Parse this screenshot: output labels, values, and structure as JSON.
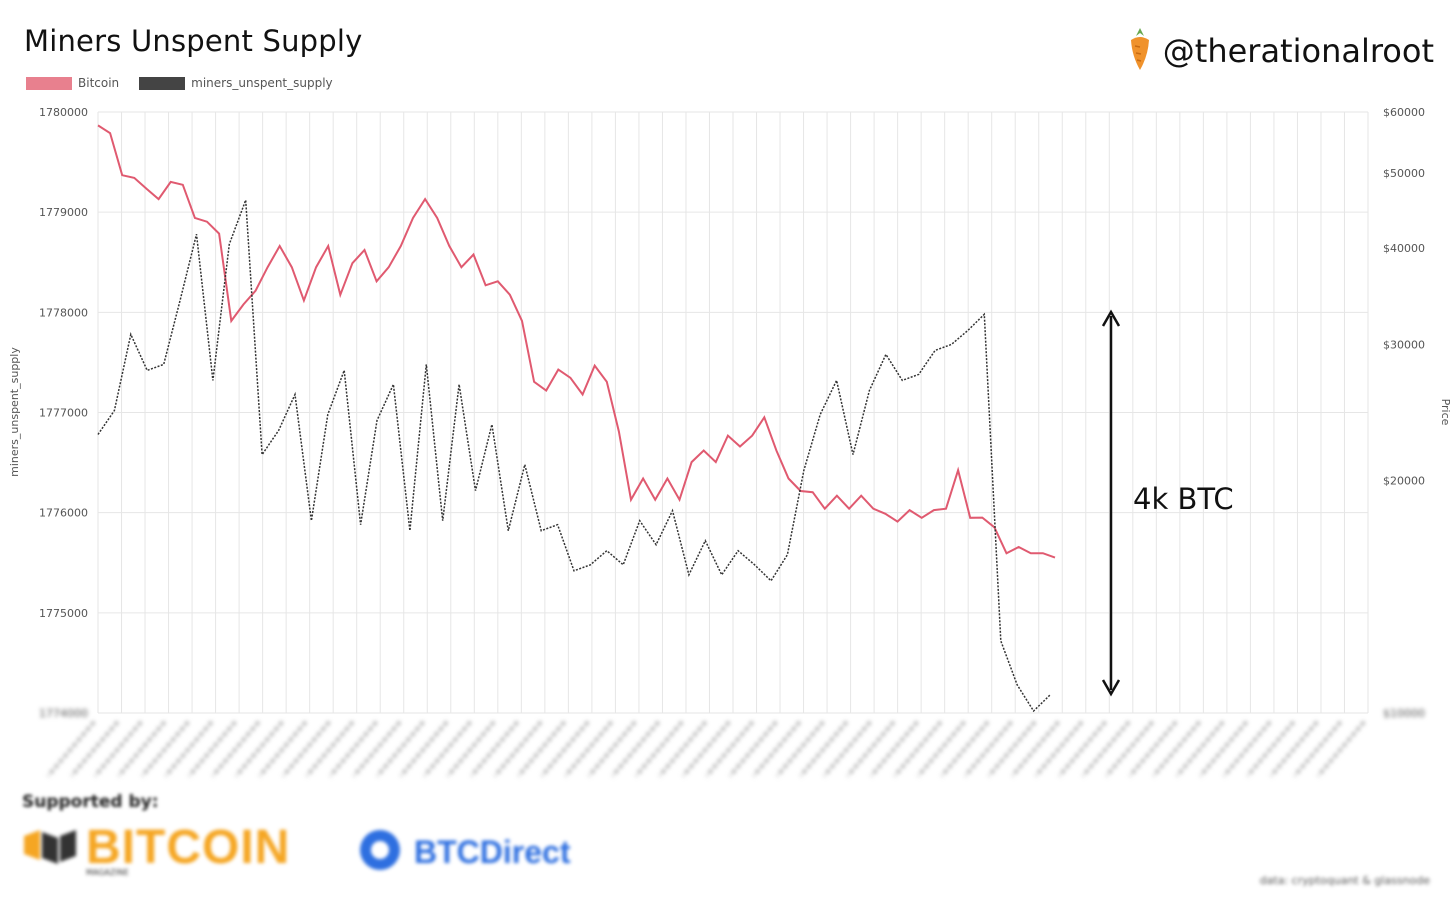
{
  "title": "Miners Unspent Supply",
  "handle": "@therationalroot",
  "legend": [
    {
      "label": "Bitcoin",
      "color": "#e8808e"
    },
    {
      "label": "miners_unspent_supply",
      "color": "#444444"
    }
  ],
  "annotation": "4k BTC",
  "supported_by": "Supported by:",
  "sponsors": [
    "BITCOIN",
    "BTCDirect"
  ],
  "sponsor_sub": "MAGAZINE",
  "source_note": "data: cryptoquant & glassnode",
  "chart_data": {
    "type": "line",
    "y_left": {
      "label": "miners_unspent_supply",
      "ticks": [
        "1780000",
        "1779000",
        "1778000",
        "1777000",
        "1776000",
        "1775000",
        "1774000"
      ],
      "range": [
        1774000,
        1780000
      ]
    },
    "y_right": {
      "label": "Price",
      "scale": "log",
      "ticks": [
        "$60000",
        "$50000",
        "$40000",
        "$30000",
        "$20000",
        "$10000"
      ],
      "range": [
        10000,
        60000
      ]
    },
    "grid": true,
    "series": [
      {
        "name": "Bitcoin",
        "axis": "right",
        "color": "#e05a70",
        "values": [
          58000,
          56000,
          50000,
          49000,
          48000,
          46000,
          49000,
          48000,
          44000,
          43000,
          42000,
          32000,
          34000,
          35000,
          38000,
          40000,
          38000,
          34000,
          38000,
          40000,
          35000,
          38000,
          40000,
          36000,
          38000,
          40000,
          44000,
          46000,
          44000,
          40000,
          38000,
          39000,
          36000,
          36000,
          35000,
          32000,
          27000,
          26000,
          28000,
          27000,
          26000,
          28000,
          27000,
          23000,
          19000,
          20000,
          19000,
          20000,
          19000,
          21000,
          22000,
          21000,
          23000,
          22000,
          23000,
          24000,
          22000,
          20000,
          19500,
          19200,
          18500,
          19000,
          18500,
          19000,
          18500,
          18000,
          17800,
          18200,
          18000,
          18200,
          18500,
          20500,
          18000,
          17800,
          17500,
          16000,
          16500,
          16000,
          16200,
          15800
        ]
      },
      {
        "name": "miners_unspent_supply",
        "axis": "left",
        "color": "#333333",
        "dashed": true,
        "values": [
          1776800,
          1777000,
          1777800,
          1777400,
          1777500,
          1778100,
          1778800,
          1777300,
          1778700,
          1779100,
          1776600,
          1776800,
          1777200,
          1775900,
          1777000,
          1777400,
          1775900,
          1776900,
          1777300,
          1775800,
          1777500,
          1775900,
          1777300,
          1776200,
          1776900,
          1775800,
          1776500,
          1775800,
          1775900,
          1775400,
          1775500,
          1775600,
          1775500,
          1775900,
          1775700,
          1776000,
          1775400,
          1775700,
          1775400,
          1775600,
          1775500,
          1775300,
          1775600,
          1776400,
          1777000,
          1777300,
          1776600,
          1777200,
          1777600,
          1777300,
          1777400,
          1777600,
          1777700,
          1777800,
          1778000,
          1774700,
          1774300,
          1774000,
          1774200
        ]
      }
    ],
    "x_tick_count": 55
  }
}
